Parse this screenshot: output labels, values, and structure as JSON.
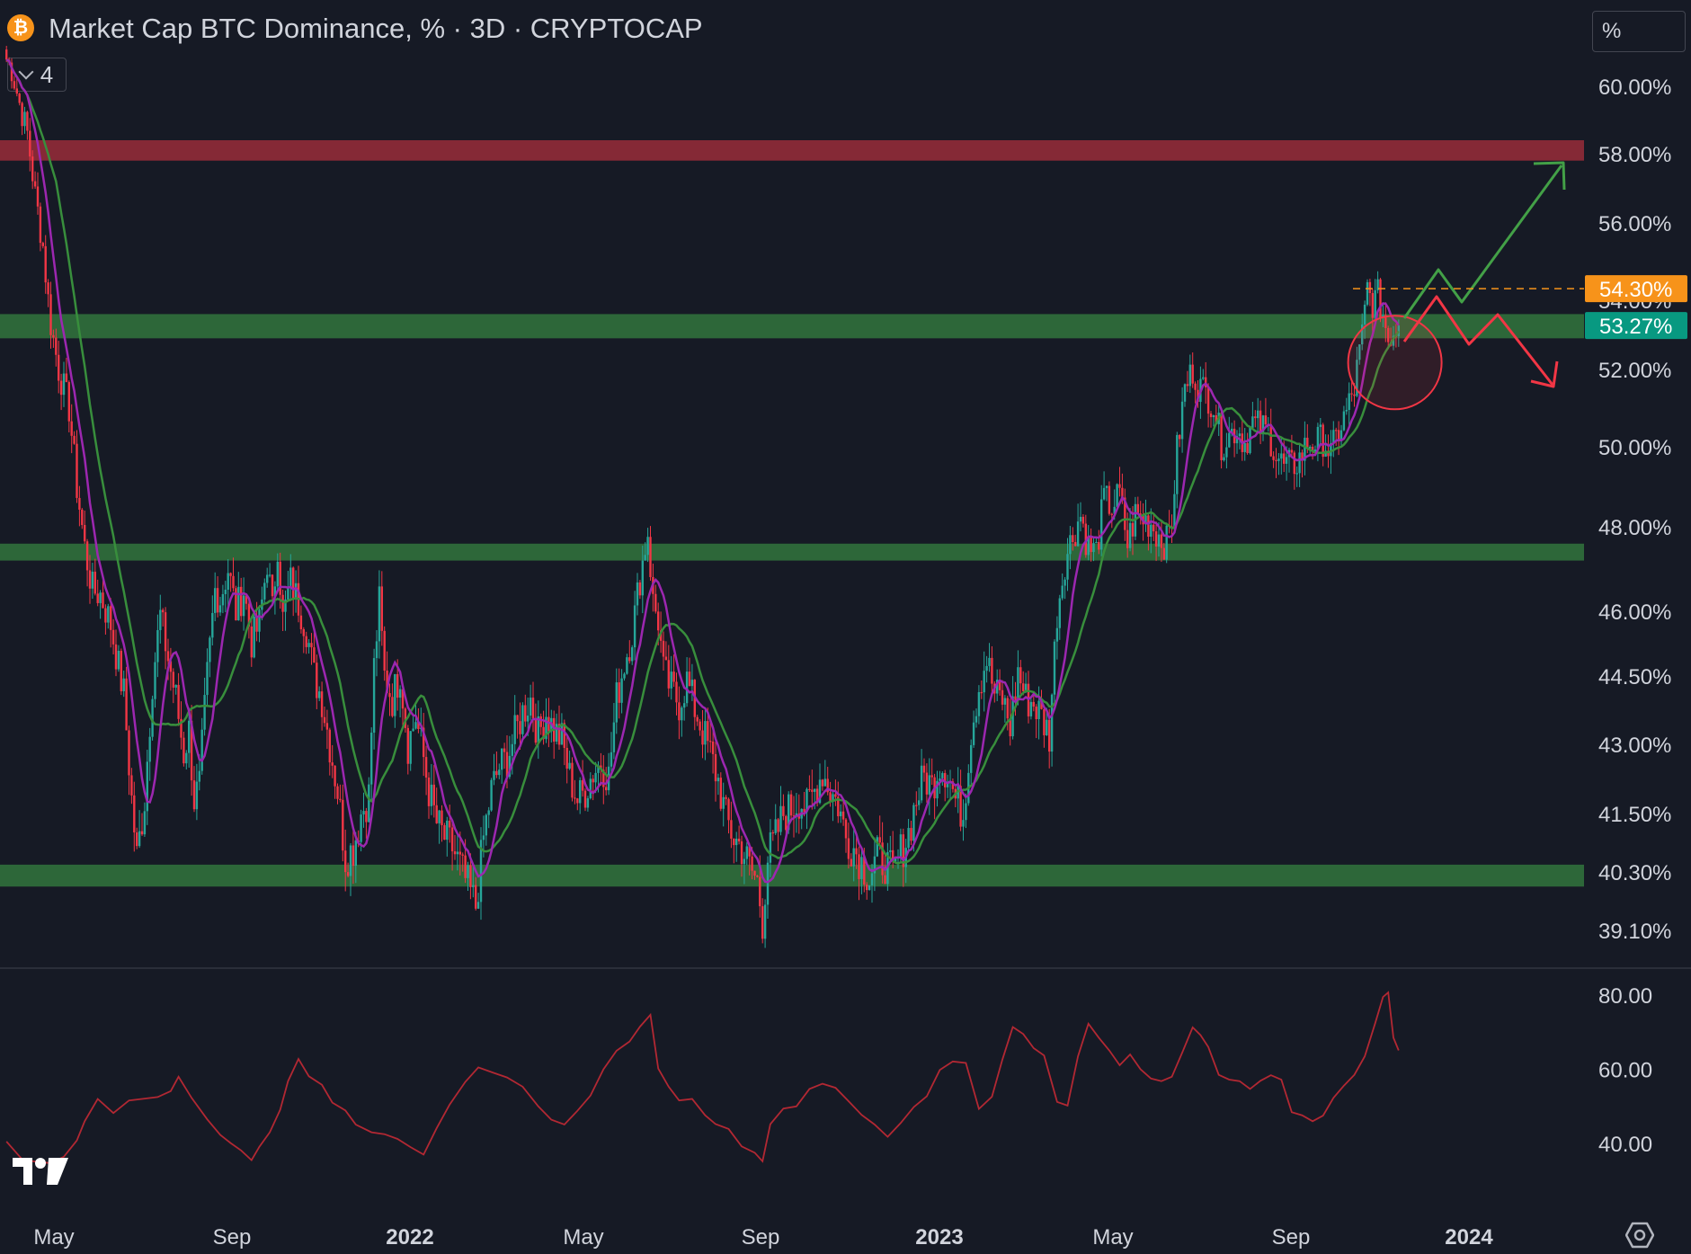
{
  "header": {
    "title": "Market Cap BTC Dominance, % · 3D · CRYPTOCAP",
    "indicator_count": "4",
    "logo_glyph": "₿"
  },
  "scale_mode": "%",
  "colors": {
    "background": "#161a25",
    "up": "#26a69a",
    "down": "#f23645",
    "ma_fast": "#9c27b0",
    "ma_slow": "#388e3c",
    "support_zone": "#2e6b3a",
    "resistance_zone": "#8b2a37",
    "rsi": "#b22833",
    "current_price_label": "#089981",
    "high_label": "#f7931a"
  },
  "chart_data": [
    {
      "type": "candlestick",
      "price_scale_labels": [
        "60.00%",
        "58.00%",
        "56.00%",
        "54.00%",
        "52.00%",
        "50.00%",
        "48.00%",
        "46.00%",
        "44.50%",
        "43.00%",
        "41.50%",
        "40.30%",
        "39.10%"
      ],
      "time_labels": [
        {
          "text": "May",
          "bold": false
        },
        {
          "text": "Sep",
          "bold": false
        },
        {
          "text": "2022",
          "bold": true
        },
        {
          "text": "May",
          "bold": false
        },
        {
          "text": "Sep",
          "bold": false
        },
        {
          "text": "2023",
          "bold": true
        },
        {
          "text": "May",
          "bold": false
        },
        {
          "text": "Sep",
          "bold": false
        },
        {
          "text": "2024",
          "bold": true
        }
      ],
      "price_labels": [
        {
          "text": "54.30%",
          "value": 54.3,
          "style": "dashed-high"
        },
        {
          "text": "53.27%",
          "value": 53.27,
          "style": "current"
        }
      ],
      "zones": [
        {
          "name": "resistance",
          "low": 57.8,
          "high": 58.4
        },
        {
          "name": "support-upper",
          "low": 52.9,
          "high": 53.6
        },
        {
          "name": "support-middle",
          "low": 47.2,
          "high": 47.6
        },
        {
          "name": "support-lower",
          "low": 40.0,
          "high": 40.45
        }
      ],
      "path": [
        [
          0,
          60.8
        ],
        [
          2,
          60.5
        ],
        [
          5,
          59.5
        ],
        [
          8,
          58.6
        ],
        [
          11,
          56.8
        ],
        [
          14,
          55.4
        ],
        [
          17,
          53.3
        ],
        [
          20,
          52.0
        ],
        [
          24,
          51.0
        ],
        [
          27,
          49.0
        ],
        [
          30,
          47.5
        ],
        [
          33,
          46.5
        ],
        [
          36,
          46.4
        ],
        [
          40,
          45.7
        ],
        [
          43,
          44.7
        ],
        [
          45,
          44.1
        ],
        [
          48,
          41.8
        ],
        [
          50,
          40.6
        ],
        [
          53,
          41.8
        ],
        [
          56,
          44.4
        ],
        [
          59,
          45.9
        ],
        [
          62,
          44.9
        ],
        [
          65,
          44.0
        ],
        [
          68,
          42.8
        ],
        [
          70,
          43.3
        ],
        [
          72,
          41.8
        ],
        [
          74,
          42.1
        ],
        [
          77,
          44.5
        ],
        [
          80,
          46.5
        ],
        [
          82,
          46.3
        ],
        [
          85,
          47.0
        ],
        [
          88,
          46.0
        ],
        [
          91,
          46.5
        ],
        [
          94,
          45.3
        ],
        [
          97,
          45.7
        ],
        [
          100,
          47.2
        ],
        [
          102,
          46.0
        ],
        [
          104,
          47.6
        ],
        [
          106,
          45.8
        ],
        [
          109,
          46.7
        ],
        [
          112,
          46.2
        ],
        [
          115,
          45.6
        ],
        [
          118,
          44.5
        ],
        [
          121,
          44.0
        ],
        [
          124,
          43.0
        ],
        [
          127,
          42.0
        ],
        [
          130,
          40.6
        ],
        [
          133,
          40.8
        ],
        [
          136,
          41.5
        ],
        [
          139,
          41.9
        ],
        [
          141,
          44.7
        ],
        [
          143,
          46.2
        ],
        [
          145,
          44.5
        ],
        [
          148,
          44.0
        ],
        [
          151,
          44.6
        ],
        [
          154,
          43.0
        ],
        [
          157,
          43.6
        ],
        [
          160,
          42.7
        ],
        [
          162,
          42.0
        ],
        [
          165,
          41.3
        ],
        [
          168,
          41.0
        ],
        [
          171,
          40.8
        ],
        [
          174,
          40.4
        ],
        [
          177,
          40.0
        ],
        [
          180,
          39.6
        ],
        [
          183,
          41.0
        ],
        [
          186,
          42.0
        ],
        [
          189,
          42.5
        ],
        [
          192,
          42.7
        ],
        [
          195,
          43.2
        ],
        [
          198,
          43.7
        ],
        [
          201,
          44.0
        ],
        [
          204,
          43.2
        ],
        [
          207,
          43.7
        ],
        [
          210,
          43.3
        ],
        [
          213,
          43.1
        ],
        [
          216,
          42.3
        ],
        [
          219,
          41.8
        ],
        [
          222,
          42.0
        ],
        [
          225,
          42.4
        ],
        [
          228,
          42.6
        ],
        [
          231,
          42.3
        ],
        [
          234,
          44.0
        ],
        [
          237,
          44.8
        ],
        [
          240,
          45.5
        ],
        [
          243,
          46.8
        ],
        [
          246,
          47.9
        ],
        [
          248,
          46.2
        ],
        [
          250,
          45.8
        ],
        [
          252,
          44.6
        ],
        [
          255,
          44.2
        ],
        [
          258,
          43.9
        ],
        [
          261,
          44.4
        ],
        [
          264,
          43.8
        ],
        [
          267,
          43.3
        ],
        [
          270,
          42.8
        ],
        [
          273,
          42.2
        ],
        [
          276,
          41.4
        ],
        [
          279,
          41.0
        ],
        [
          282,
          40.8
        ],
        [
          285,
          40.4
        ],
        [
          288,
          40.1
        ],
        [
          290,
          39.3
        ],
        [
          292,
          40.6
        ],
        [
          295,
          41.0
        ],
        [
          298,
          41.5
        ],
        [
          301,
          41.6
        ],
        [
          304,
          41.8
        ],
        [
          307,
          41.6
        ],
        [
          310,
          42.0
        ],
        [
          313,
          42.4
        ],
        [
          316,
          42.0
        ],
        [
          319,
          41.7
        ],
        [
          322,
          41.0
        ],
        [
          325,
          40.8
        ],
        [
          328,
          40.5
        ],
        [
          331,
          40.2
        ],
        [
          334,
          40.6
        ],
        [
          337,
          40.5
        ],
        [
          340,
          40.2
        ],
        [
          343,
          40.7
        ],
        [
          346,
          41.1
        ],
        [
          349,
          41.8
        ],
        [
          352,
          42.3
        ],
        [
          355,
          42.1
        ],
        [
          358,
          42.6
        ],
        [
          361,
          42.4
        ],
        [
          364,
          41.8
        ],
        [
          367,
          41.5
        ],
        [
          370,
          43.3
        ],
        [
          373,
          44.3
        ],
        [
          376,
          44.9
        ],
        [
          379,
          44.1
        ],
        [
          382,
          44.0
        ],
        [
          385,
          43.4
        ],
        [
          388,
          44.6
        ],
        [
          391,
          44.0
        ],
        [
          394,
          43.9
        ],
        [
          397,
          43.6
        ],
        [
          400,
          43.2
        ],
        [
          403,
          46.0
        ],
        [
          406,
          47.2
        ],
        [
          409,
          47.8
        ],
        [
          412,
          48.3
        ],
        [
          415,
          47.5
        ],
        [
          418,
          47.4
        ],
        [
          421,
          48.7
        ],
        [
          424,
          48.5
        ],
        [
          427,
          48.8
        ],
        [
          430,
          47.6
        ],
        [
          433,
          48.3
        ],
        [
          436,
          48.2
        ],
        [
          439,
          48.1
        ],
        [
          442,
          47.8
        ],
        [
          445,
          47.6
        ],
        [
          447,
          48.2
        ],
        [
          449,
          49.9
        ],
        [
          452,
          51.5
        ],
        [
          455,
          52.0
        ],
        [
          457,
          51.6
        ],
        [
          460,
          51.4
        ],
        [
          463,
          51.1
        ],
        [
          466,
          50.1
        ],
        [
          469,
          50.3
        ],
        [
          472,
          50.5
        ],
        [
          475,
          50.1
        ],
        [
          478,
          50.6
        ],
        [
          481,
          50.5
        ],
        [
          484,
          50.4
        ],
        [
          487,
          49.8
        ],
        [
          490,
          49.5
        ],
        [
          493,
          49.5
        ],
        [
          496,
          49.7
        ],
        [
          499,
          50.1
        ],
        [
          502,
          50.1
        ],
        [
          505,
          50.2
        ],
        [
          508,
          49.8
        ],
        [
          511,
          50.4
        ],
        [
          514,
          50.9
        ],
        [
          517,
          51.5
        ],
        [
          520,
          53.0
        ],
        [
          522,
          54.3
        ],
        [
          524,
          53.9
        ],
        [
          526,
          54.1
        ],
        [
          528,
          53.6
        ],
        [
          530,
          52.9
        ],
        [
          532,
          53.1
        ],
        [
          534,
          53.27
        ]
      ],
      "rsi": {
        "labels": [
          "80.00",
          "60.00",
          "40.00"
        ],
        "path": [
          [
            0,
            40.5
          ],
          [
            6,
            35.7
          ],
          [
            11,
            35.1
          ],
          [
            17,
            34.7
          ],
          [
            22,
            36.4
          ],
          [
            27,
            40.8
          ],
          [
            30,
            46.0
          ],
          [
            35,
            52.0
          ],
          [
            41,
            48.2
          ],
          [
            47,
            51.6
          ],
          [
            52,
            52.0
          ],
          [
            58,
            52.5
          ],
          [
            63,
            54.1
          ],
          [
            66,
            58.0
          ],
          [
            71,
            52.3
          ],
          [
            77,
            46.5
          ],
          [
            82,
            42.3
          ],
          [
            86,
            40.1
          ],
          [
            90,
            38.1
          ],
          [
            94,
            35.5
          ],
          [
            97,
            39.1
          ],
          [
            101,
            43.0
          ],
          [
            105,
            49.1
          ],
          [
            108,
            56.8
          ],
          [
            112,
            62.8
          ],
          [
            116,
            58.1
          ],
          [
            121,
            55.8
          ],
          [
            125,
            51.0
          ],
          [
            130,
            48.9
          ],
          [
            134,
            45.1
          ],
          [
            140,
            43.0
          ],
          [
            145,
            42.5
          ],
          [
            150,
            41.2
          ],
          [
            155,
            39.0
          ],
          [
            160,
            37.0
          ],
          [
            165,
            44.1
          ],
          [
            170,
            50.5
          ],
          [
            176,
            56.6
          ],
          [
            181,
            60.5
          ],
          [
            187,
            59.0
          ],
          [
            192,
            57.8
          ],
          [
            198,
            55.3
          ],
          [
            204,
            50.0
          ],
          [
            209,
            46.4
          ],
          [
            214,
            45.1
          ],
          [
            219,
            48.8
          ],
          [
            224,
            52.9
          ],
          [
            229,
            60.0
          ],
          [
            234,
            65.0
          ],
          [
            239,
            67.5
          ],
          [
            243,
            71.5
          ],
          [
            247,
            74.7
          ],
          [
            250,
            60.2
          ],
          [
            254,
            55.3
          ],
          [
            258,
            51.6
          ],
          [
            263,
            52.0
          ],
          [
            268,
            47.6
          ],
          [
            272,
            45.2
          ],
          [
            277,
            43.9
          ],
          [
            282,
            39.2
          ],
          [
            287,
            37.5
          ],
          [
            290,
            35.2
          ],
          [
            293,
            45.2
          ],
          [
            298,
            49.4
          ],
          [
            303,
            50.0
          ],
          [
            308,
            54.7
          ],
          [
            313,
            56.1
          ],
          [
            318,
            55.0
          ],
          [
            323,
            51.4
          ],
          [
            328,
            47.7
          ],
          [
            333,
            45.1
          ],
          [
            338,
            41.8
          ],
          [
            343,
            45.5
          ],
          [
            348,
            49.8
          ],
          [
            353,
            52.7
          ],
          [
            358,
            59.8
          ],
          [
            363,
            62.1
          ],
          [
            368,
            61.7
          ],
          [
            373,
            49.3
          ],
          [
            378,
            52.6
          ],
          [
            382,
            62.6
          ],
          [
            386,
            71.4
          ],
          [
            390,
            69.5
          ],
          [
            394,
            65.7
          ],
          [
            398,
            63.7
          ],
          [
            403,
            51.2
          ],
          [
            407,
            50.2
          ],
          [
            411,
            63.5
          ],
          [
            415,
            72.3
          ],
          [
            419,
            68.5
          ],
          [
            423,
            65.1
          ],
          [
            427,
            61.1
          ],
          [
            431,
            64.0
          ],
          [
            435,
            60.0
          ],
          [
            439,
            57.5
          ],
          [
            443,
            56.8
          ],
          [
            447,
            58.0
          ],
          [
            451,
            64.5
          ],
          [
            455,
            71.3
          ],
          [
            458,
            69.2
          ],
          [
            461,
            66.0
          ],
          [
            465,
            58.5
          ],
          [
            469,
            57.2
          ],
          [
            473,
            56.8
          ],
          [
            477,
            54.7
          ],
          [
            481,
            56.9
          ],
          [
            485,
            58.4
          ],
          [
            489,
            57.2
          ],
          [
            493,
            48.4
          ],
          [
            497,
            47.6
          ],
          [
            501,
            46.0
          ],
          [
            505,
            47.5
          ],
          [
            509,
            52.3
          ],
          [
            513,
            55.6
          ],
          [
            517,
            58.5
          ],
          [
            521,
            63.5
          ],
          [
            525,
            72.4
          ],
          [
            528,
            79.5
          ],
          [
            530,
            80.7
          ],
          [
            532,
            68.5
          ],
          [
            534,
            65.1
          ]
        ]
      }
    }
  ]
}
